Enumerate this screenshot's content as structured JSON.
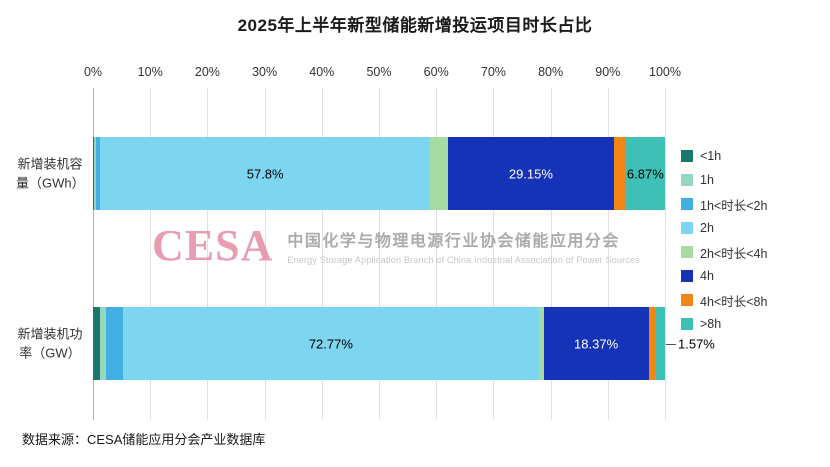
{
  "chart_data": {
    "type": "bar",
    "orientation": "horizontal-stacked",
    "title": "2025年上半年新型储能新增投运项目时长占比",
    "categories": [
      "新增装机容量（GWh）",
      "新增装机功率（GW）"
    ],
    "x_axis": {
      "min": 0,
      "max": 100,
      "ticks": [
        "0%",
        "10%",
        "20%",
        "30%",
        "40%",
        "50%",
        "60%",
        "70%",
        "80%",
        "90%",
        "100%"
      ],
      "grid": true,
      "position": "top"
    },
    "legend_position": "right",
    "series": [
      {
        "name": "<1h",
        "color": "#17796B",
        "values": [
          0.2,
          1.3
        ],
        "labels": [
          null,
          null
        ]
      },
      {
        "name": "1h",
        "color": "#96D7BE",
        "values": [
          0.3,
          1.0
        ],
        "labels": [
          null,
          null
        ]
      },
      {
        "name": "1h<时长<2h",
        "color": "#41AEE4",
        "values": [
          0.7,
          2.9
        ],
        "labels": [
          null,
          null
        ]
      },
      {
        "name": "2h",
        "color": "#7DD5F0",
        "values": [
          57.8,
          72.77
        ],
        "labels": [
          "57.8%",
          "72.77%"
        ],
        "label_color": "#000000"
      },
      {
        "name": "2h<时长<4h",
        "color": "#A6DBA4",
        "values": [
          2.98,
          0.8
        ],
        "labels": [
          null,
          null
        ]
      },
      {
        "name": "4h",
        "color": "#1533B6",
        "values": [
          29.15,
          18.37
        ],
        "labels": [
          "29.15%",
          "18.37%"
        ],
        "label_color": "#ffffff"
      },
      {
        "name": "4h<时长<8h",
        "color": "#F28718",
        "values": [
          2.0,
          1.29
        ],
        "labels": [
          null,
          null
        ]
      },
      {
        "name": ">8h",
        "color": "#3EC0B6",
        "values": [
          6.87,
          1.57
        ],
        "labels": [
          "6.87%",
          "1.57%"
        ],
        "label_color": "#000000",
        "label_outside": [
          false,
          true
        ]
      }
    ]
  },
  "watermark": {
    "cesa": "CESA",
    "line1": "中国化学与物理电源行业协会储能应用分会",
    "line2": "Energy Storage Application Branch of China Industrial Association of Power Sources"
  },
  "footer": {
    "text": "数据来源：CESA储能应用分会产业数据库"
  }
}
